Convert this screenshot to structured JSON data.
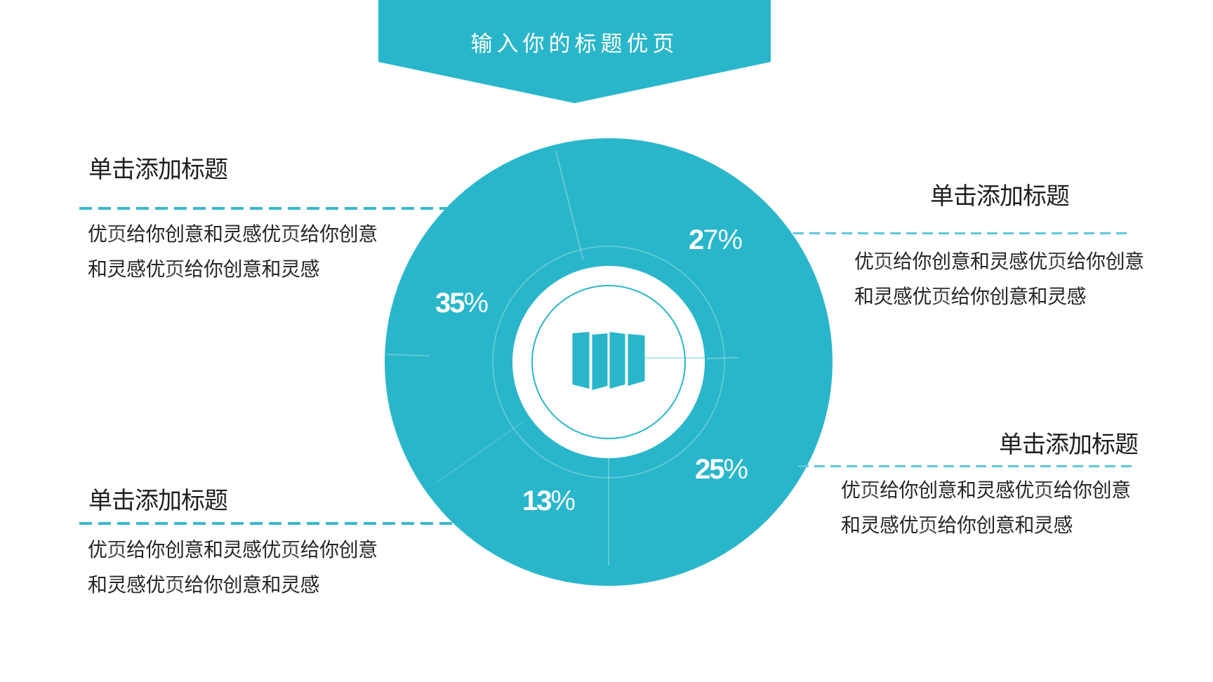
{
  "banner": {
    "title": "输入你的标题优页"
  },
  "colors": {
    "teal": "#2ab6ca",
    "dash_left": "#3ab9cf",
    "dash_right": "#5ec8d9",
    "text_dark": "#1f1f1f",
    "text_body": "#262626",
    "white": "#ffffff"
  },
  "center_icon": "map-icon",
  "percents": {
    "p27": {
      "bold": "2",
      "light": "7%"
    },
    "p35": {
      "bold": "35",
      "light": "%"
    },
    "p25": {
      "bold": "25",
      "light": "%"
    },
    "p13": {
      "bold": "13",
      "light": "%"
    }
  },
  "blocks": {
    "top_left": {
      "title": "单击添加标题",
      "line1": "优页给你创意和灵感优页给你创意",
      "line2": "和灵感优页给你创意和灵感"
    },
    "top_right": {
      "title": "单击添加标题",
      "line1": "优页给你创意和灵感优页给你创意",
      "line2": "和灵感优页给你创意和灵感"
    },
    "bottom_left": {
      "title": "单击添加标题",
      "line1": "优页给你创意和灵感优页给你创意",
      "line2": "和灵感优页给你创意和灵感"
    },
    "bottom_right": {
      "title": "单击添加标题",
      "line1": "优页给你创意和灵感优页给你创意",
      "line2": "和灵感优页给你创意和灵感"
    }
  },
  "chart_data": {
    "type": "pie",
    "title": "输入你的标题优页",
    "values": [
      27,
      35,
      25,
      13
    ],
    "labels": [
      "单击添加标题 (top-right)",
      "单击添加标题 (left)",
      "单击添加标题 (bottom-right)",
      "单击添加标题 (bottom)"
    ],
    "unit": "%",
    "legend_position": "none",
    "style": "single-color teal donut with faint slice dividers, white center disc with map icon"
  }
}
